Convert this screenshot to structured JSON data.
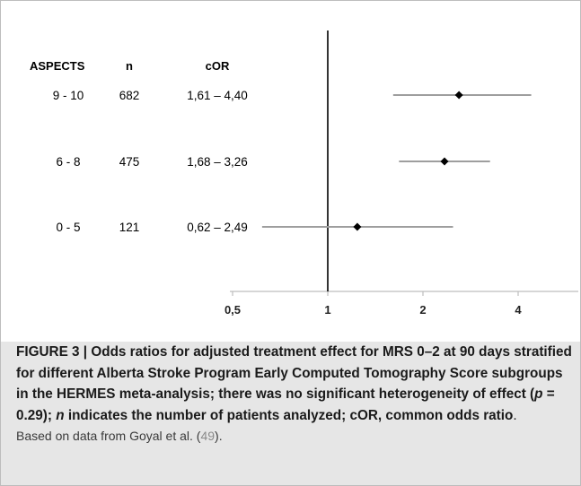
{
  "chart_data": {
    "type": "forest",
    "x_scale": "log",
    "xlim": [
      0.5,
      4
    ],
    "xticks": [
      "0,5",
      "1",
      "2",
      "4"
    ],
    "reference_line": 1,
    "headers": {
      "group": "ASPECTS",
      "n": "n",
      "ci": "cOR"
    },
    "rows": [
      {
        "group": "9 - 10",
        "n": "682",
        "ci_text": "1,61 – 4,40",
        "or": 2.6,
        "ci": [
          1.61,
          4.4
        ]
      },
      {
        "group": "6 - 8",
        "n": "475",
        "ci_text": "1,68 – 3,26",
        "or": 2.34,
        "ci": [
          1.68,
          3.26
        ]
      },
      {
        "group": "0 - 5",
        "n": "121",
        "ci_text": "0,62 – 2,49",
        "or": 1.24,
        "ci": [
          0.62,
          2.49
        ]
      }
    ],
    "colors": {
      "ci_line": "#9e9e9e",
      "marker": "#000000",
      "reference": "#000000",
      "axis": "#bdbdbd"
    }
  },
  "caption": {
    "label": "FIGURE 3",
    "sep": " | ",
    "text_a": "Odds ratios for adjusted treatment effect for MRS 0–2 at 90 days stratified for different Alberta Stroke Program Early Computed Tomography Score subgroups in the HERMES meta-analysis; there was no significant heterogeneity of effect (",
    "p_symbol": "p",
    "text_b": " = 0.29); ",
    "n_symbol": "n",
    "text_c": " indicates the number of patients analyzed; cOR, common odds ratio",
    "text_d": ".",
    "source_a": "Based on data from Goyal et al. (",
    "source_ref": "49",
    "source_b": ")."
  }
}
